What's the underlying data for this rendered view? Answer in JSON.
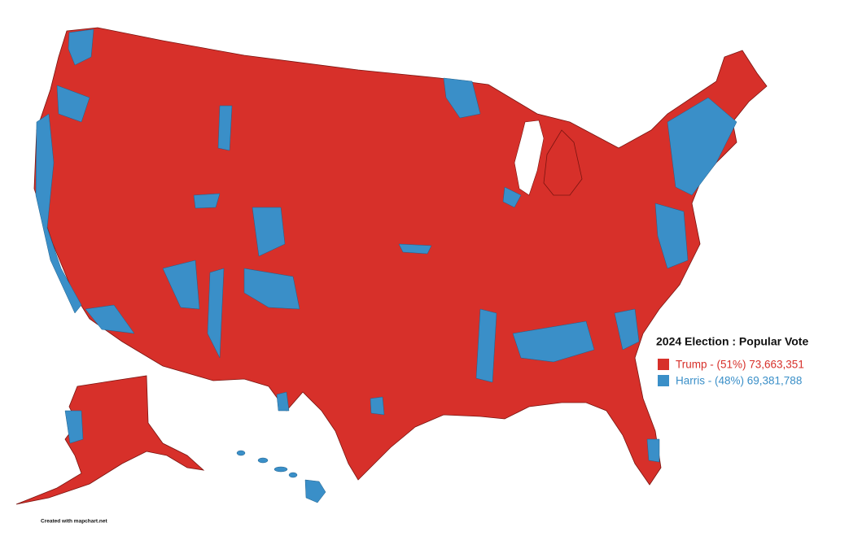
{
  "legend": {
    "title": "2024 Election : Popular Vote",
    "entries": [
      {
        "label": "Trump - (51%) 73,663,351",
        "color": "#d7302a"
      },
      {
        "label": "Harris - (48%) 69,381,788",
        "color": "#3a8fc8"
      }
    ]
  },
  "credit": "Created with mapchart.net"
}
